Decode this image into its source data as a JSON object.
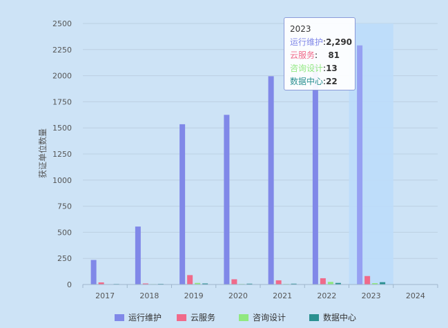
{
  "chart_data": {
    "type": "bar",
    "ylabel": "获证单位数量",
    "xlabel": "",
    "title": "",
    "categories": [
      "2017",
      "2018",
      "2019",
      "2020",
      "2021",
      "2022",
      "2023",
      "2024"
    ],
    "ylim": [
      0,
      2500
    ],
    "yticks": [
      "0",
      "250",
      "500",
      "750",
      "1000",
      "1250",
      "1500",
      "1750",
      "2000",
      "2250",
      "2500"
    ],
    "grid": true,
    "legend_position": "bottom",
    "highlighted_category": "2023",
    "series": [
      {
        "name": "运行维护",
        "color": "#8088e8",
        "values": [
          235,
          555,
          1535,
          1625,
          1995,
          2105,
          2290,
          0
        ]
      },
      {
        "name": "云服务",
        "color": "#f06a8a",
        "values": [
          20,
          10,
          90,
          50,
          40,
          60,
          81,
          0
        ]
      },
      {
        "name": "咨询设计",
        "color": "#90e880",
        "values": [
          3,
          4,
          15,
          5,
          5,
          25,
          13,
          0
        ]
      },
      {
        "name": "数据中心",
        "color": "#2a9090",
        "values": [
          5,
          6,
          10,
          8,
          8,
          15,
          22,
          0
        ]
      }
    ]
  },
  "tooltip": {
    "title": "2023",
    "rows": [
      {
        "label": "运行维护",
        "value": "2,290",
        "color": "#8088e8"
      },
      {
        "label": "云服务",
        "value": "81",
        "color": "#f06a8a"
      },
      {
        "label": "咨询设计",
        "value": "13",
        "color": "#90e880"
      },
      {
        "label": "数据中心",
        "value": "22",
        "color": "#2a9090"
      }
    ]
  }
}
